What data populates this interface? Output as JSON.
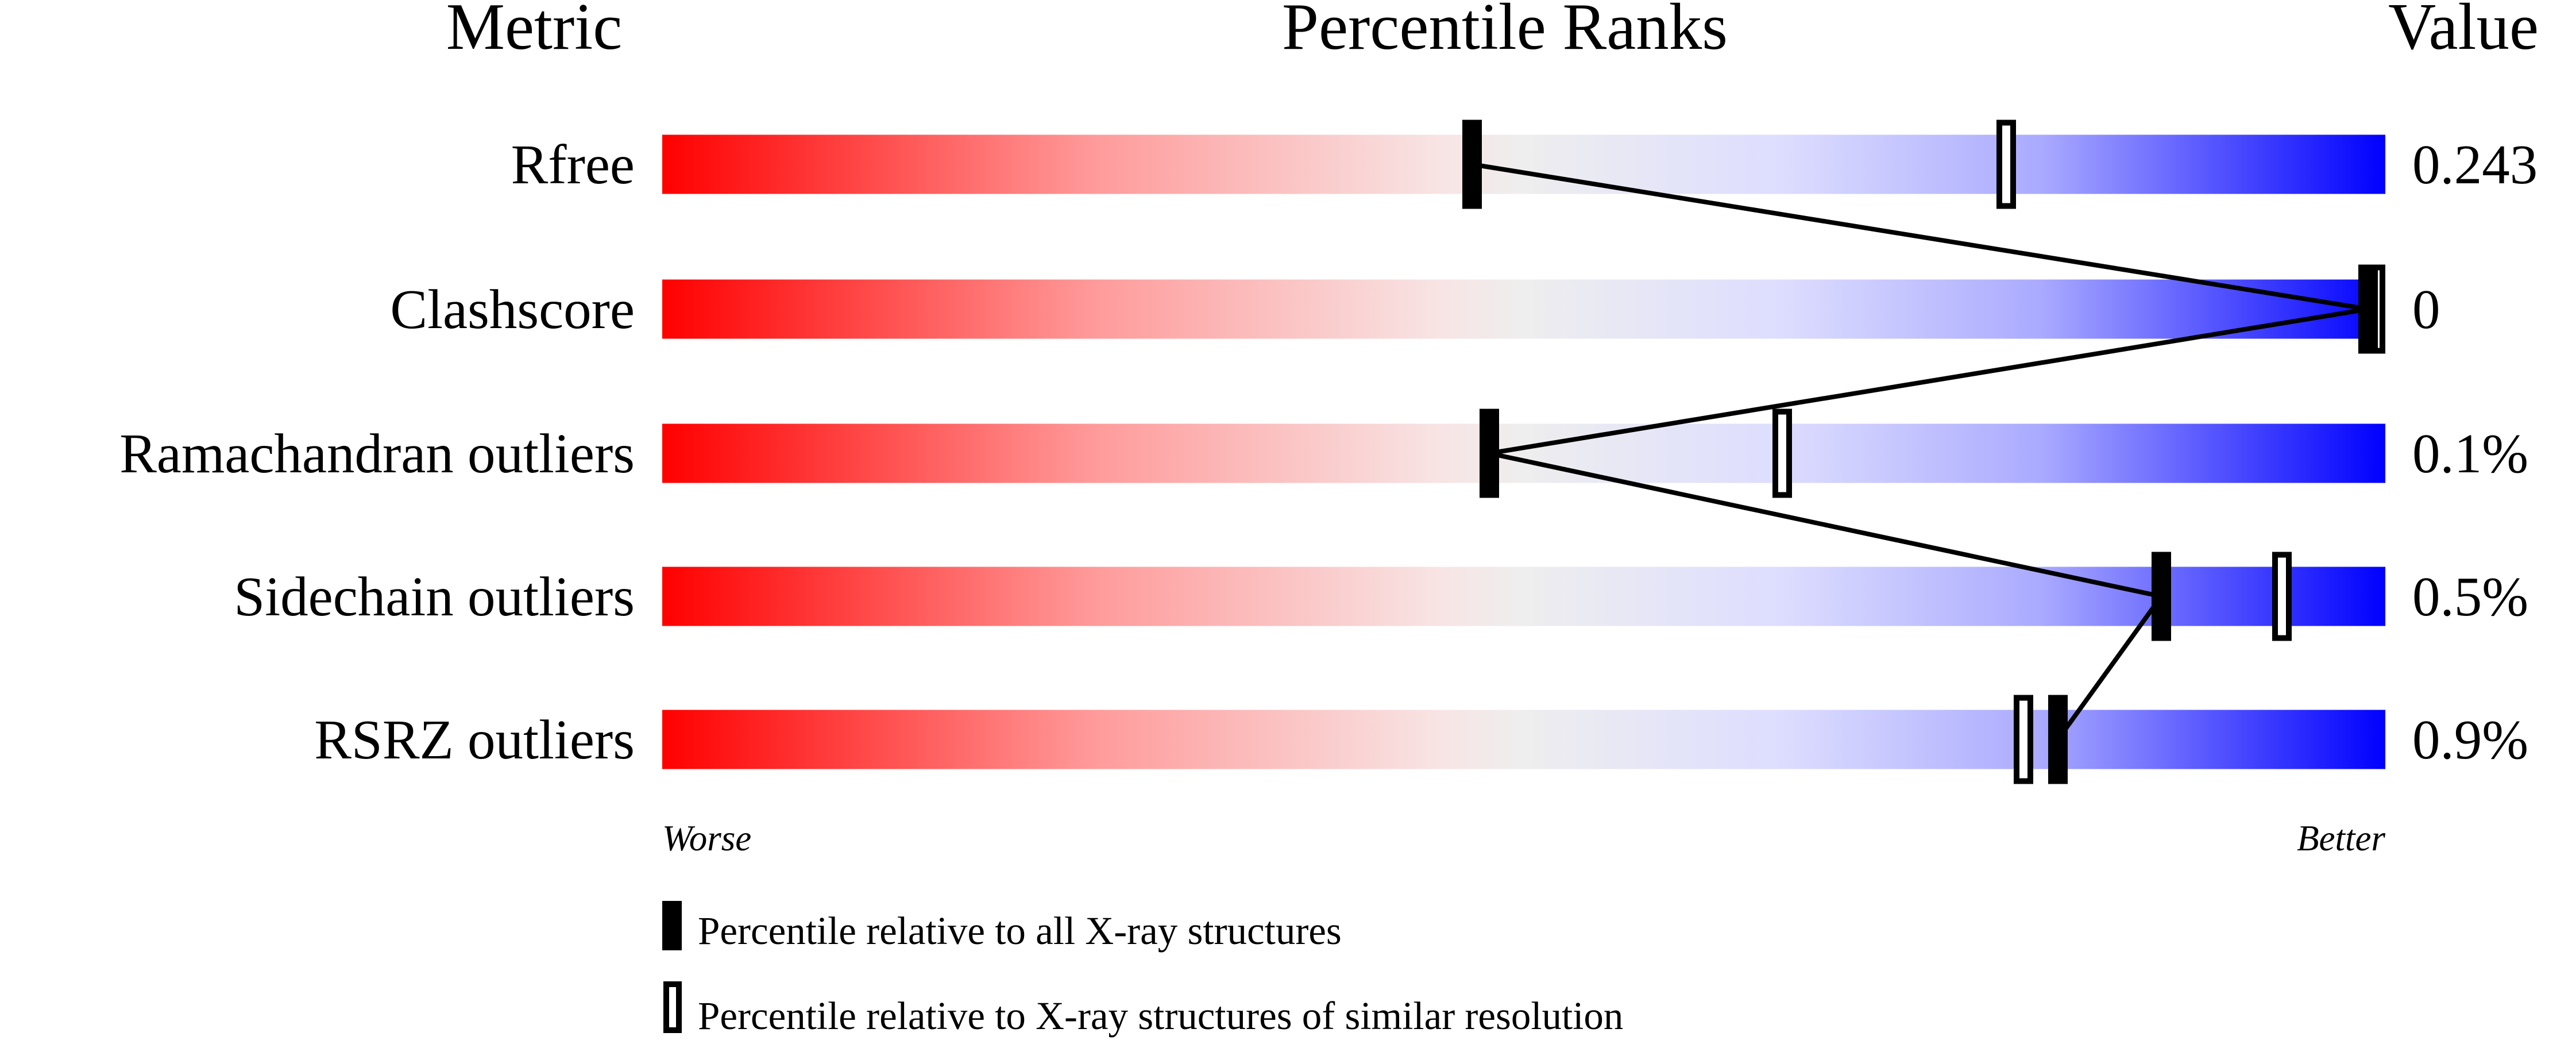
{
  "chart_data": {
    "type": "percentile-slider",
    "headers": {
      "metric": "Metric",
      "ranks": "Percentile Ranks",
      "value": "Value"
    },
    "xlim": [
      0,
      100
    ],
    "axis_labels": {
      "left": "Worse",
      "right": "Better"
    },
    "colors": {
      "worse": "#ff0000",
      "middle": "#f0f0f0",
      "better": "#0000ff"
    },
    "rows": [
      {
        "metric": "Rfree",
        "value": "0.243",
        "percentile_all": 47,
        "percentile_similar": 78
      },
      {
        "metric": "Clashscore",
        "value": "0",
        "percentile_all": 99,
        "percentile_similar": 100
      },
      {
        "metric": "Ramachandran outliers",
        "value": "0.1%",
        "percentile_all": 48,
        "percentile_similar": 65
      },
      {
        "metric": "Sidechain outliers",
        "value": "0.5%",
        "percentile_all": 87,
        "percentile_similar": 94
      },
      {
        "metric": "RSRZ outliers",
        "value": "0.9%",
        "percentile_all": 81,
        "percentile_similar": 79
      }
    ],
    "legend": [
      {
        "marker": "filled",
        "label": "Percentile relative to all X-ray structures"
      },
      {
        "marker": "open",
        "label": "Percentile relative to X-ray structures of similar resolution"
      }
    ]
  }
}
